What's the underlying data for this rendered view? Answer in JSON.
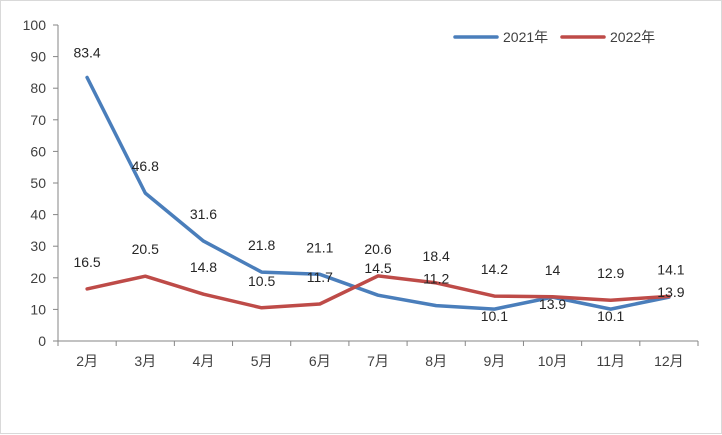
{
  "chart_data": {
    "type": "line",
    "title": "",
    "xlabel": "",
    "ylabel": "",
    "categories": [
      "2月",
      "3月",
      "4月",
      "5月",
      "6月",
      "7月",
      "8月",
      "9月",
      "10月",
      "11月",
      "12月"
    ],
    "ylim": [
      0,
      100
    ],
    "yticks": [
      "0",
      "10",
      "20",
      "30",
      "40",
      "50",
      "60",
      "70",
      "80",
      "90",
      "100"
    ],
    "grid": false,
    "legend_position": "top-right",
    "series": [
      {
        "name": "2021年",
        "color": "#4a7ebb",
        "values": [
          83.4,
          46.8,
          31.6,
          21.8,
          21.1,
          14.5,
          11.2,
          10.1,
          13.9,
          10.1,
          13.9
        ],
        "labels": [
          "83.4",
          "46.8",
          "31.6",
          "21.8",
          "21.1",
          "14.5",
          "11.2",
          "10.1",
          "13.9",
          "10.1",
          "13.9"
        ]
      },
      {
        "name": "2022年",
        "color": "#be4b48",
        "values": [
          16.5,
          20.5,
          14.8,
          10.5,
          11.7,
          20.6,
          18.4,
          14.2,
          14,
          12.9,
          14.1
        ],
        "labels": [
          "16.5",
          "20.5",
          "14.8",
          "10.5",
          "11.7",
          "20.6",
          "18.4",
          "14.2",
          "14",
          "12.9",
          "14.1"
        ]
      }
    ]
  }
}
